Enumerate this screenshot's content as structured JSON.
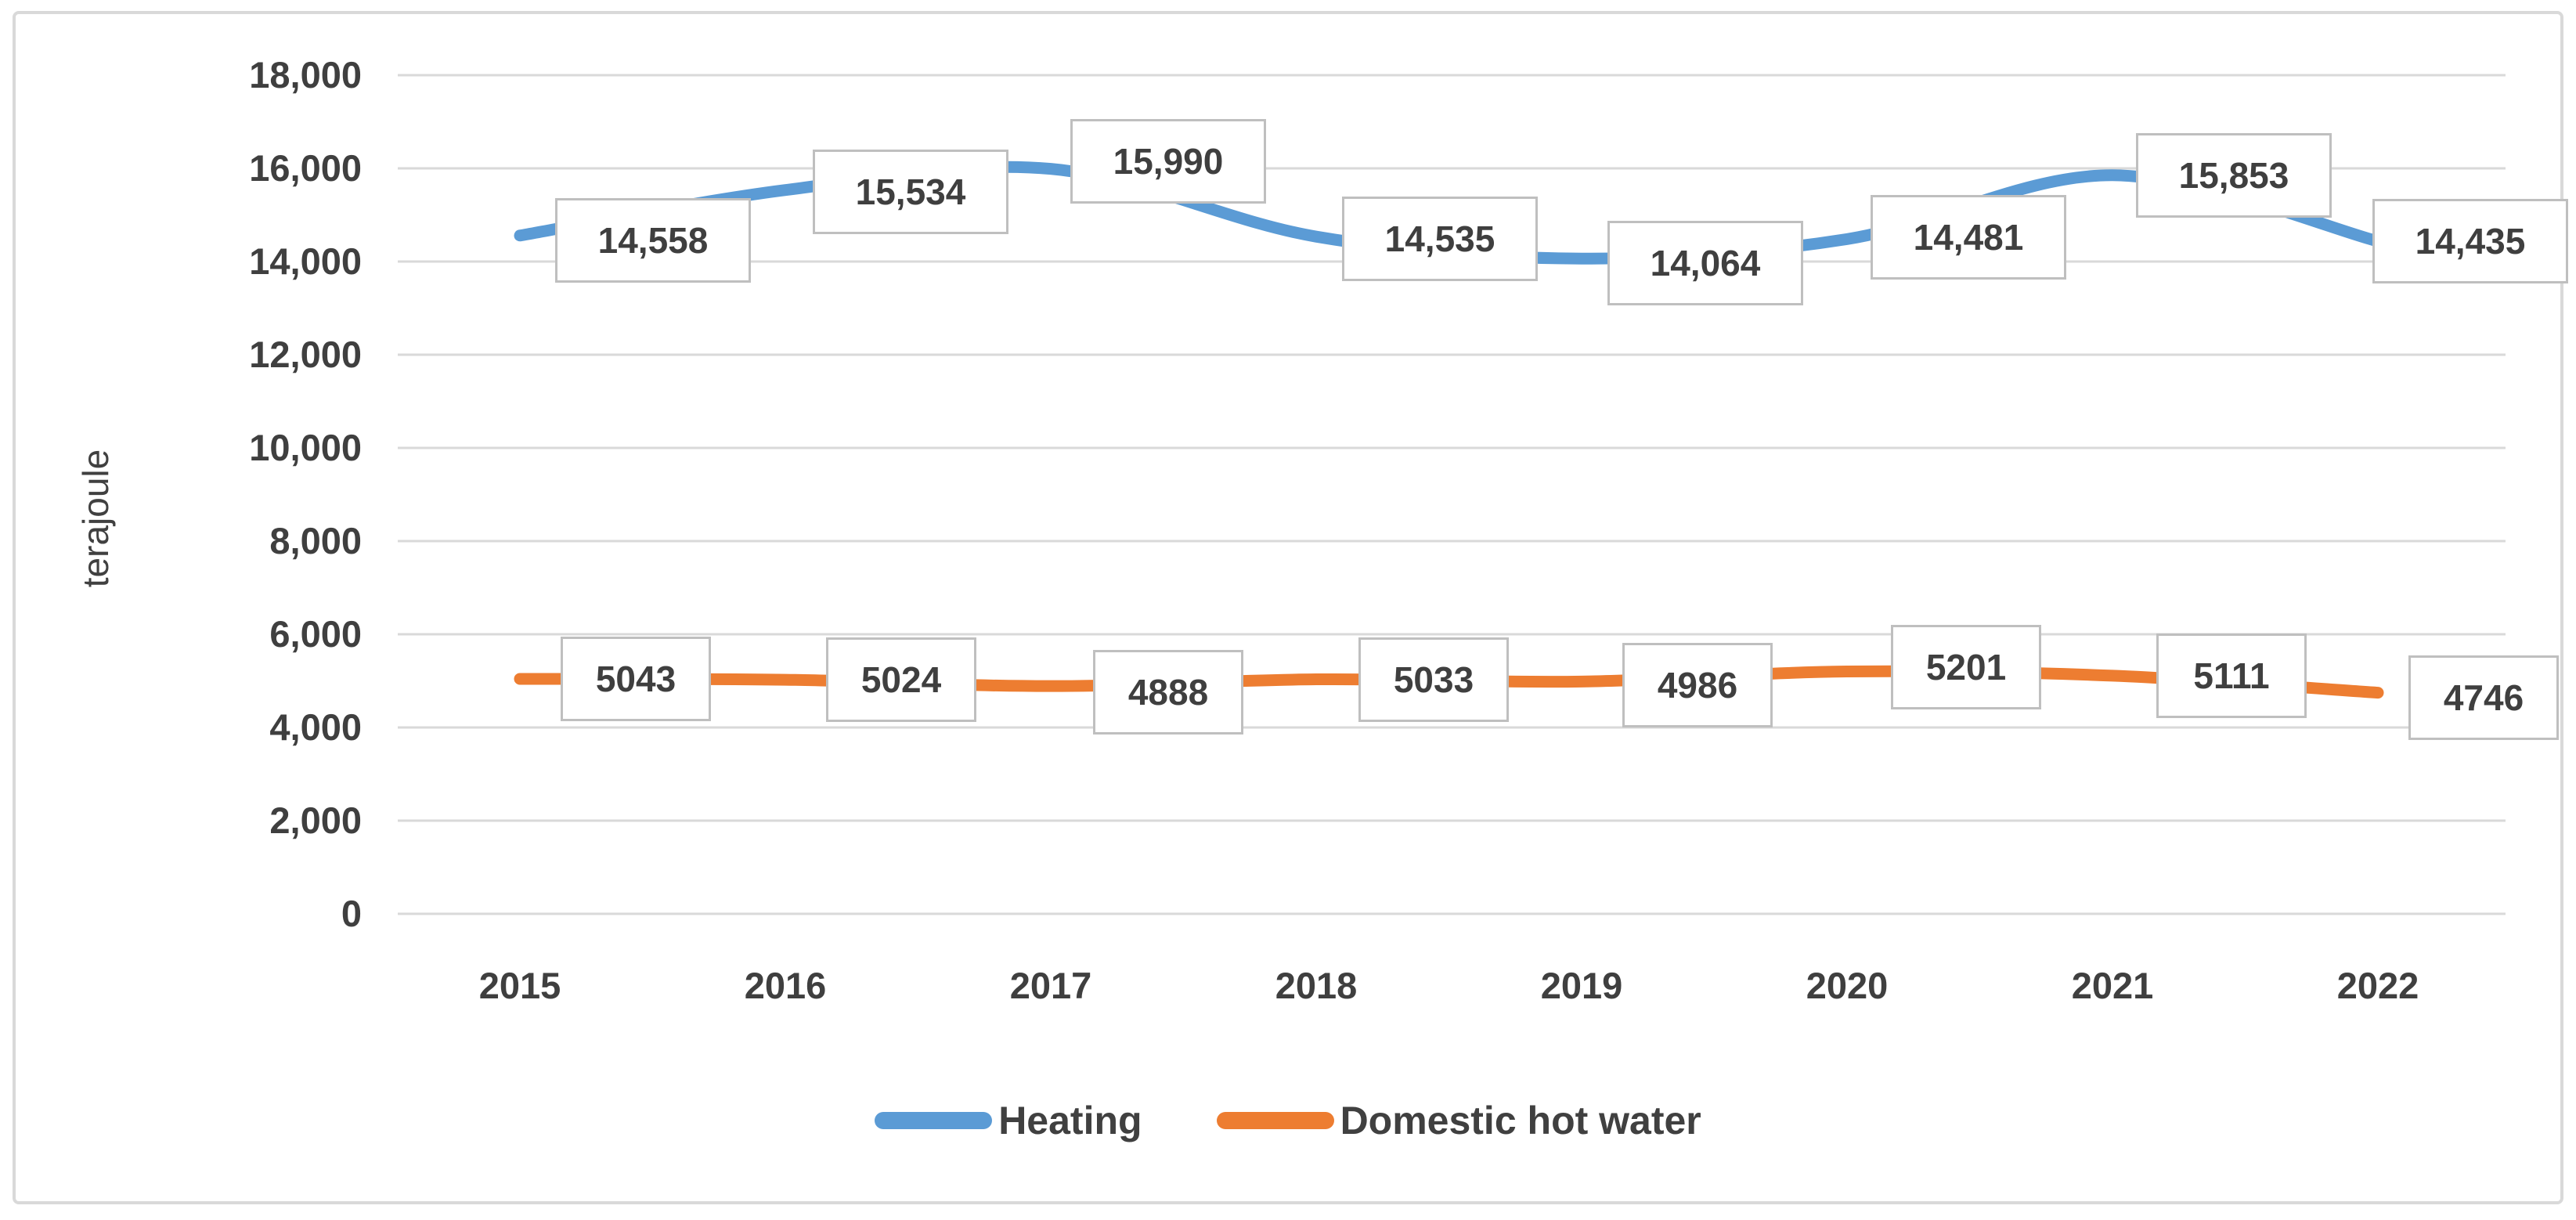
{
  "chart_data": {
    "type": "line",
    "title": "",
    "xlabel": "",
    "ylabel": "terajoule",
    "categories": [
      "2015",
      "2016",
      "2017",
      "2018",
      "2019",
      "2020",
      "2021",
      "2022"
    ],
    "series": [
      {
        "name": "Heating",
        "color": "#5B9BD5",
        "values": [
          14558,
          15534,
          15990,
          14535,
          14064,
          14481,
          15853,
          14435
        ],
        "data_labels": [
          "14,558",
          "15,534",
          "15,990",
          "14,535",
          "14,064",
          "14,481",
          "15,853",
          "14,435"
        ]
      },
      {
        "name": "Domestic hot water",
        "color": "#ED7D31",
        "values": [
          5043,
          5024,
          4888,
          5033,
          4986,
          5201,
          5111,
          4746
        ],
        "data_labels": [
          "5043",
          "5024",
          "4888",
          "5033",
          "4986",
          "5201",
          "5111",
          "4746"
        ]
      }
    ],
    "y_axis": {
      "min": 0,
      "max": 18000,
      "step": 2000,
      "tick_labels": [
        "0",
        "2,000",
        "4,000",
        "6,000",
        "8,000",
        "10,000",
        "12,000",
        "14,000",
        "16,000",
        "18,000"
      ]
    },
    "legend_position": "bottom",
    "grid": "horizontal",
    "colors": {
      "gridline": "#D9D9D9",
      "chart_border": "#D9D9D9",
      "axis_text": "#3F3F3F",
      "label_box_border": "#BFBFBF",
      "label_box_fill": "#FFFFFF"
    }
  }
}
